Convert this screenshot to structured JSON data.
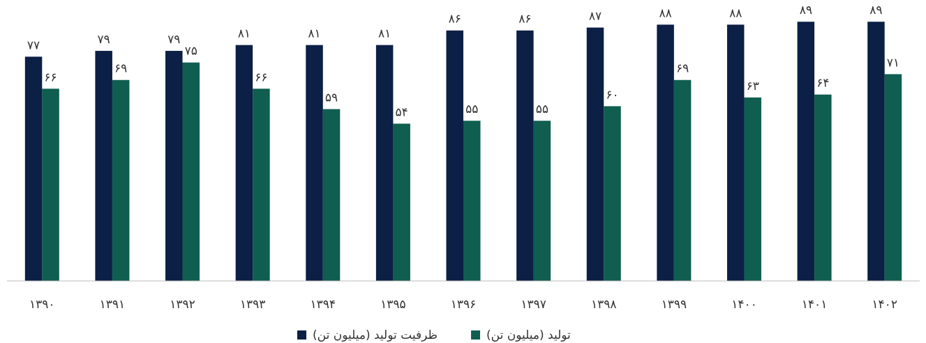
{
  "chart_data": {
    "type": "bar",
    "categories": [
      "۱۳۹۰",
      "۱۳۹۱",
      "۱۳۹۲",
      "۱۳۹۳",
      "۱۳۹۴",
      "۱۳۹۵",
      "۱۳۹۶",
      "۱۳۹۷",
      "۱۳۹۸",
      "۱۳۹۹",
      "۱۴۰۰",
      "۱۴۰۱",
      "۱۴۰۲"
    ],
    "series": [
      {
        "name": "ظرفیت تولید (میلیون تن)",
        "color": "#0c1f45",
        "values": [
          77,
          79,
          79,
          81,
          81,
          81,
          86,
          86,
          87,
          88,
          88,
          89,
          89
        ],
        "value_labels": [
          "۷۷",
          "۷۹",
          "۷۹",
          "۸۱",
          "۸۱",
          "۸۱",
          "۸۶",
          "۸۶",
          "۸۷",
          "۸۸",
          "۸۸",
          "۸۹",
          "۸۹"
        ]
      },
      {
        "name": "تولید (میلیون تن)",
        "color": "#0f5e50",
        "values": [
          66,
          69,
          75,
          66,
          59,
          54,
          55,
          55,
          60,
          69,
          63,
          64,
          71
        ],
        "value_labels": [
          "۶۶",
          "۶۹",
          "۷۵",
          "۶۶",
          "۵۹",
          "۵۴",
          "۵۵",
          "۵۵",
          "۶۰",
          "۶۹",
          "۶۳",
          "۶۴",
          "۷۱"
        ]
      }
    ],
    "ylim": [
      0,
      90
    ],
    "legend": "bottom"
  }
}
